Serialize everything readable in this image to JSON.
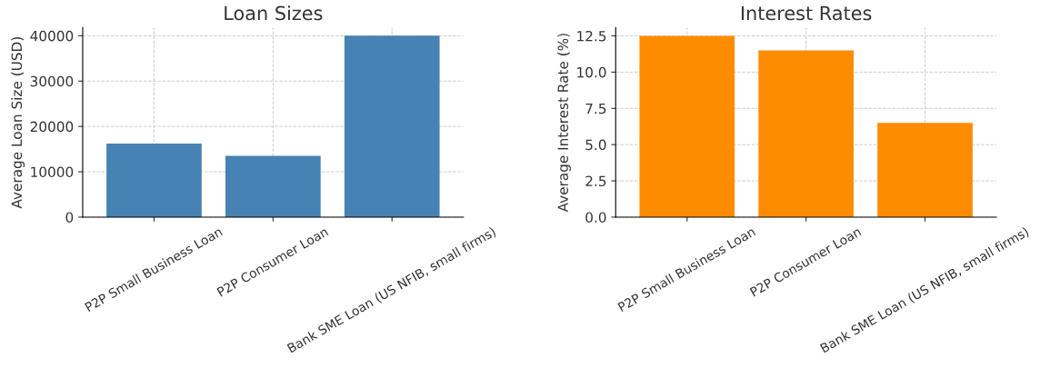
{
  "chart_data": [
    {
      "type": "bar",
      "title": "Loan Sizes",
      "ylabel": "Average Loan Size (USD)",
      "categories": [
        "P2P Small Business Loan",
        "P2P Consumer Loan",
        "Bank SME Loan (US NFIB, small firms)"
      ],
      "values": [
        16200,
        13500,
        40000
      ],
      "color": "#4682b4",
      "ylim": [
        0,
        41800
      ],
      "yticks": [
        0,
        10000,
        20000,
        30000,
        40000
      ],
      "grid": true
    },
    {
      "type": "bar",
      "title": "Interest Rates",
      "ylabel": "Average Interest Rate (%)",
      "categories": [
        "P2P Small Business Loan",
        "P2P Consumer Loan",
        "Bank SME Loan (US NFIB, small firms)"
      ],
      "values": [
        12.5,
        11.5,
        6.5
      ],
      "color": "#ff8c00",
      "ylim": [
        0,
        13.07
      ],
      "yticks": [
        {
          "value": 0,
          "label": "0.0"
        },
        2.5,
        {
          "value": 5,
          "label": "5.0"
        },
        7.5,
        {
          "value": 10,
          "label": "10.0"
        },
        12.5
      ],
      "grid": true
    }
  ]
}
